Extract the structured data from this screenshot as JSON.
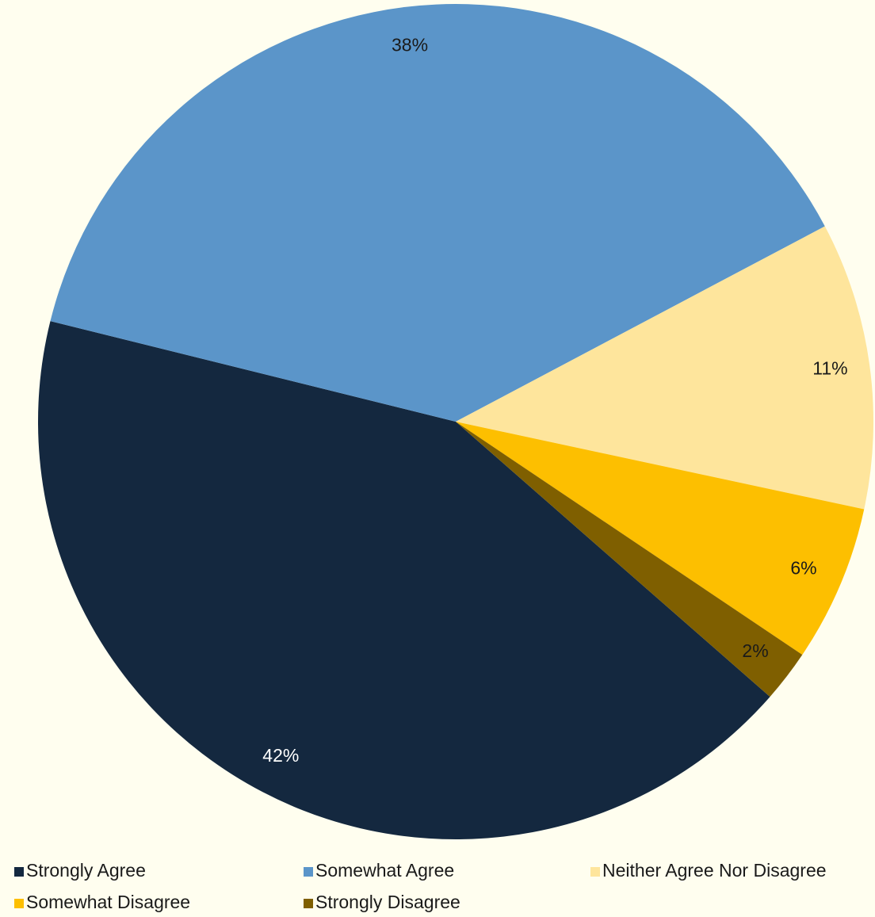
{
  "chart_data": {
    "type": "pie",
    "categories": [
      "Strongly Agree",
      "Somewhat Agree",
      "Neither Agree Nor Disagree",
      "Somewhat Disagree",
      "Strongly Disagree"
    ],
    "values": [
      42,
      38,
      11,
      6,
      2
    ],
    "value_labels": [
      "42%",
      "38%",
      "11%",
      "6%",
      "2%"
    ],
    "colors": [
      "#14283f",
      "#5b95c9",
      "#fee59c",
      "#fdbf00",
      "#7f5f00"
    ],
    "legend": "bottom"
  }
}
